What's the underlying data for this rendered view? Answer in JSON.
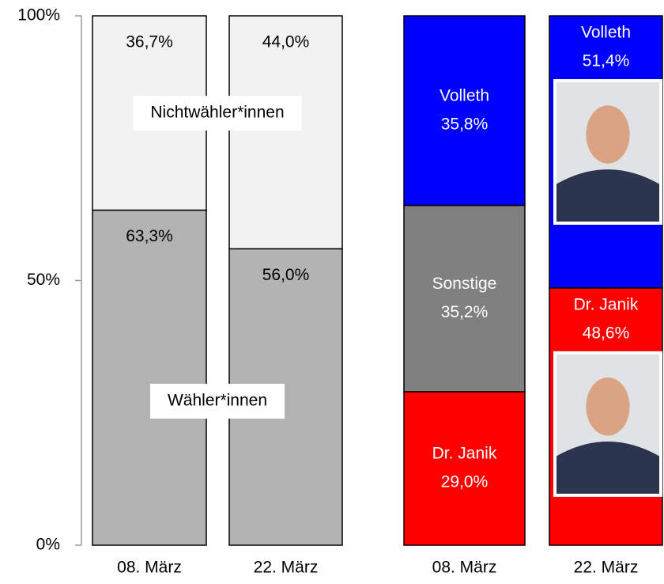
{
  "chart_data": [
    {
      "type": "stacked-bar",
      "categories": [
        "08. März",
        "22. März"
      ],
      "ylim": [
        0,
        100
      ],
      "yticks": [
        {
          "value": 0,
          "label": "0%"
        },
        {
          "value": 50,
          "label": "50%"
        },
        {
          "value": 100,
          "label": "100%"
        }
      ],
      "series": [
        {
          "name": "Wähler*innen",
          "color": "#b3b3b3",
          "values": [
            63.3,
            56.0
          ],
          "value_labels": [
            "63,3%",
            "56,0%"
          ]
        },
        {
          "name": "Nichtwähler*innen",
          "color": "#f2f2f2",
          "values": [
            36.7,
            44.0
          ],
          "value_labels": [
            "36,7%",
            "44,0%"
          ]
        }
      ]
    },
    {
      "type": "stacked-bar",
      "categories": [
        "08. März",
        "22. März"
      ],
      "series": [
        {
          "name": "Dr. Janik",
          "color": "#ff0000",
          "values": [
            29.0,
            48.6
          ],
          "value_labels": [
            "29,0%",
            "48,6%"
          ]
        },
        {
          "name": "Sonstige",
          "color": "#808080",
          "values": [
            35.2,
            null
          ],
          "value_labels": [
            "35,2%",
            null
          ]
        },
        {
          "name": "Volleth",
          "color": "#0000ff",
          "values": [
            35.8,
            51.4
          ],
          "value_labels": [
            "35,8%",
            "51,4%"
          ]
        }
      ]
    }
  ]
}
